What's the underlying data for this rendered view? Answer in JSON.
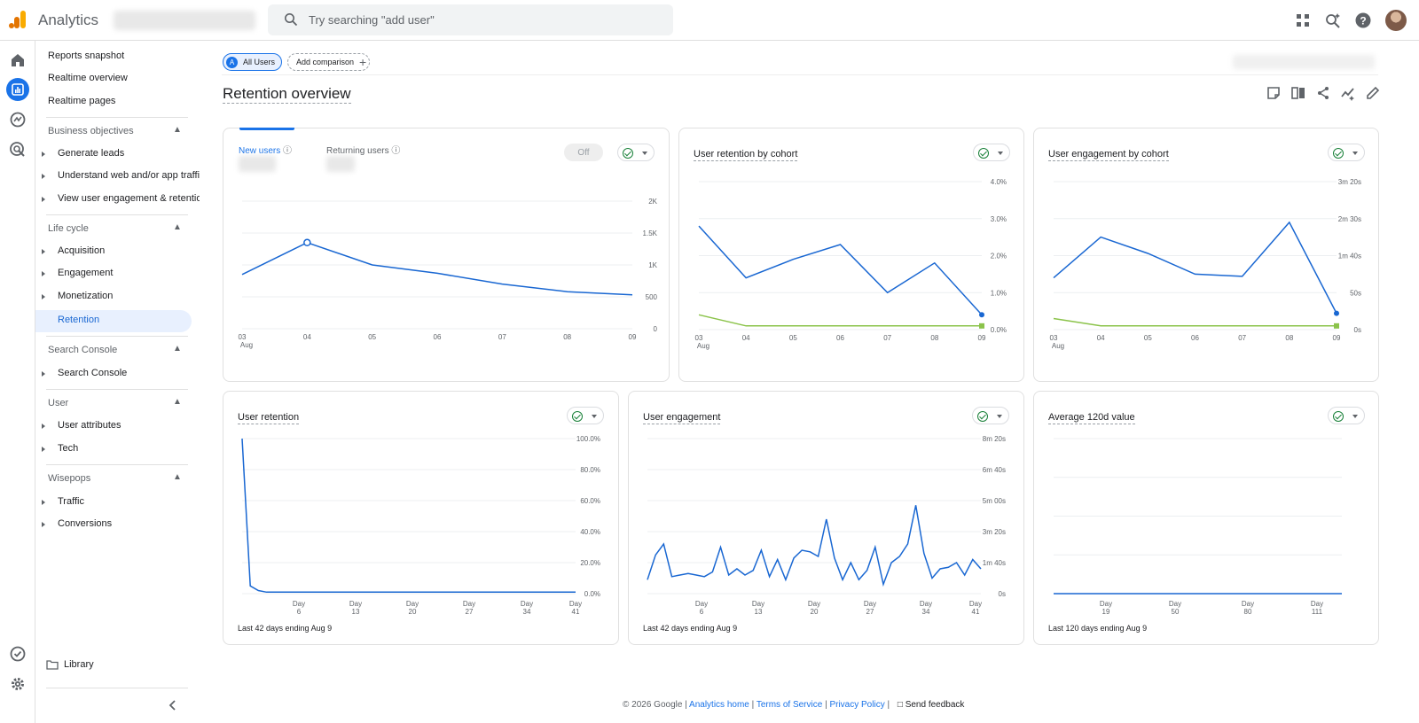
{
  "app": {
    "name": "Analytics"
  },
  "search": {
    "placeholder": "Try searching \"add user\""
  },
  "nav": {
    "top_items": [
      "Reports snapshot",
      "Realtime overview",
      "Realtime pages"
    ],
    "sections": [
      {
        "title": "Business objectives",
        "items": [
          "Generate leads",
          "Understand web and/or app traffic",
          "View user engagement & retention"
        ]
      },
      {
        "title": "Life cycle",
        "items": [
          "Acquisition",
          "Engagement",
          "Monetization"
        ],
        "selected": "Retention"
      },
      {
        "title": "Search Console",
        "items": [
          "Search Console"
        ]
      },
      {
        "title": "User",
        "items": [
          "User attributes",
          "Tech"
        ]
      },
      {
        "title": "Wisepops",
        "items": [
          "Traffic",
          "Conversions"
        ]
      }
    ],
    "library": "Library"
  },
  "chips": {
    "all_users": "All Users",
    "badge": "A",
    "add_comparison": "Add comparison"
  },
  "page": {
    "title": "Retention overview"
  },
  "colors": {
    "accent": "#1a73e8",
    "series_blue": "#1967d2",
    "series_green": "#8bc34a"
  },
  "cards": {
    "users": {
      "tab_new": "New users",
      "tab_returning": "Returning users",
      "off": "Off",
      "y_ticks": [
        "2K",
        "1.5K",
        "1K",
        "500",
        "0"
      ],
      "x_ticks": [
        "03",
        "04",
        "05",
        "06",
        "07",
        "08",
        "09"
      ],
      "x_month": "Aug"
    },
    "retention_cohort": {
      "title": "User retention by cohort",
      "y_ticks": [
        "4.0%",
        "3.0%",
        "2.0%",
        "1.0%",
        "0.0%"
      ],
      "x_ticks": [
        "03",
        "04",
        "05",
        "06",
        "07",
        "08",
        "09"
      ],
      "x_month": "Aug"
    },
    "engagement_cohort": {
      "title": "User engagement by cohort",
      "y_ticks": [
        "3m 20s",
        "2m 30s",
        "1m 40s",
        "50s",
        "0s"
      ],
      "x_ticks": [
        "03",
        "04",
        "05",
        "06",
        "07",
        "08",
        "09"
      ],
      "x_month": "Aug"
    },
    "user_retention": {
      "title": "User retention",
      "y_ticks": [
        "100.0%",
        "80.0%",
        "60.0%",
        "40.0%",
        "20.0%",
        "0.0%"
      ],
      "x_ticks": [
        [
          "Day",
          "6"
        ],
        [
          "Day",
          "13"
        ],
        [
          "Day",
          "20"
        ],
        [
          "Day",
          "27"
        ],
        [
          "Day",
          "34"
        ],
        [
          "Day",
          "41"
        ]
      ],
      "footer": "Last 42 days ending Aug 9"
    },
    "user_engagement": {
      "title": "User engagement",
      "y_ticks": [
        "8m 20s",
        "6m 40s",
        "5m 00s",
        "3m 20s",
        "1m 40s",
        "0s"
      ],
      "x_ticks": [
        [
          "Day",
          "6"
        ],
        [
          "Day",
          "13"
        ],
        [
          "Day",
          "20"
        ],
        [
          "Day",
          "27"
        ],
        [
          "Day",
          "34"
        ],
        [
          "Day",
          "41"
        ]
      ],
      "footer": "Last 42 days ending Aug 9"
    },
    "avg_value": {
      "title": "Average 120d value",
      "x_ticks": [
        [
          "Day",
          "19"
        ],
        [
          "Day",
          "50"
        ],
        [
          "Day",
          "80"
        ],
        [
          "Day",
          "111"
        ]
      ],
      "footer": "Last 120 days ending Aug 9"
    }
  },
  "footer": {
    "copyright": "© 2026 Google |",
    "links": [
      "Analytics home",
      "Terms of Service",
      "Privacy Policy"
    ],
    "feedback": "Send feedback"
  },
  "chart_data": [
    {
      "type": "line",
      "title": "",
      "categories": [
        "03 Aug",
        "04",
        "05",
        "06",
        "07",
        "08",
        "09"
      ],
      "ylim": [
        0,
        2000
      ],
      "series": [
        {
          "name": "New users",
          "values": [
            850,
            1350,
            1000,
            870,
            700,
            580,
            530
          ]
        }
      ]
    },
    {
      "type": "line",
      "title": "User retention by cohort",
      "categories": [
        "03 Aug",
        "04",
        "05",
        "06",
        "07",
        "08",
        "09"
      ],
      "ylim": [
        0,
        4.0
      ],
      "series": [
        {
          "values": [
            2.8,
            1.4,
            1.9,
            2.3,
            1.0,
            1.8,
            0.4
          ]
        },
        {
          "values": [
            0.4,
            0.1,
            0.1,
            0.1,
            0.1,
            0.1,
            0.1
          ]
        }
      ]
    },
    {
      "type": "line",
      "title": "User engagement by cohort",
      "categories": [
        "03 Aug",
        "04",
        "05",
        "06",
        "07",
        "08",
        "09"
      ],
      "ylim": [
        0,
        200
      ],
      "series": [
        {
          "values": [
            70,
            125,
            103,
            75,
            72,
            145,
            22
          ]
        },
        {
          "values": [
            15,
            5,
            5,
            5,
            5,
            5,
            5
          ]
        }
      ]
    },
    {
      "type": "line",
      "title": "User retention",
      "ylim": [
        0,
        100
      ],
      "series": [
        {
          "values": [
            100,
            5,
            2,
            1,
            1,
            1,
            1,
            1,
            1,
            1,
            1,
            1,
            1,
            1,
            1,
            1,
            1,
            1,
            1,
            1,
            1,
            1,
            1,
            1,
            1,
            1,
            1,
            1,
            1,
            1,
            1,
            1,
            1,
            1,
            1,
            1,
            1,
            1,
            1,
            1,
            1,
            1
          ]
        }
      ]
    },
    {
      "type": "line",
      "title": "User engagement",
      "ylim": [
        0,
        500
      ],
      "series": [
        {
          "values": [
            45,
            125,
            160,
            55,
            60,
            65,
            60,
            55,
            70,
            150,
            60,
            80,
            60,
            75,
            140,
            55,
            110,
            45,
            115,
            140,
            135,
            120,
            240,
            115,
            45,
            100,
            45,
            75,
            150,
            30,
            100,
            120,
            160,
            285,
            130,
            50,
            80,
            85,
            100,
            60,
            110,
            80
          ]
        }
      ]
    },
    {
      "type": "line",
      "title": "Average 120d value",
      "series": [
        {
          "values": [
            0,
            0
          ]
        }
      ]
    }
  ]
}
